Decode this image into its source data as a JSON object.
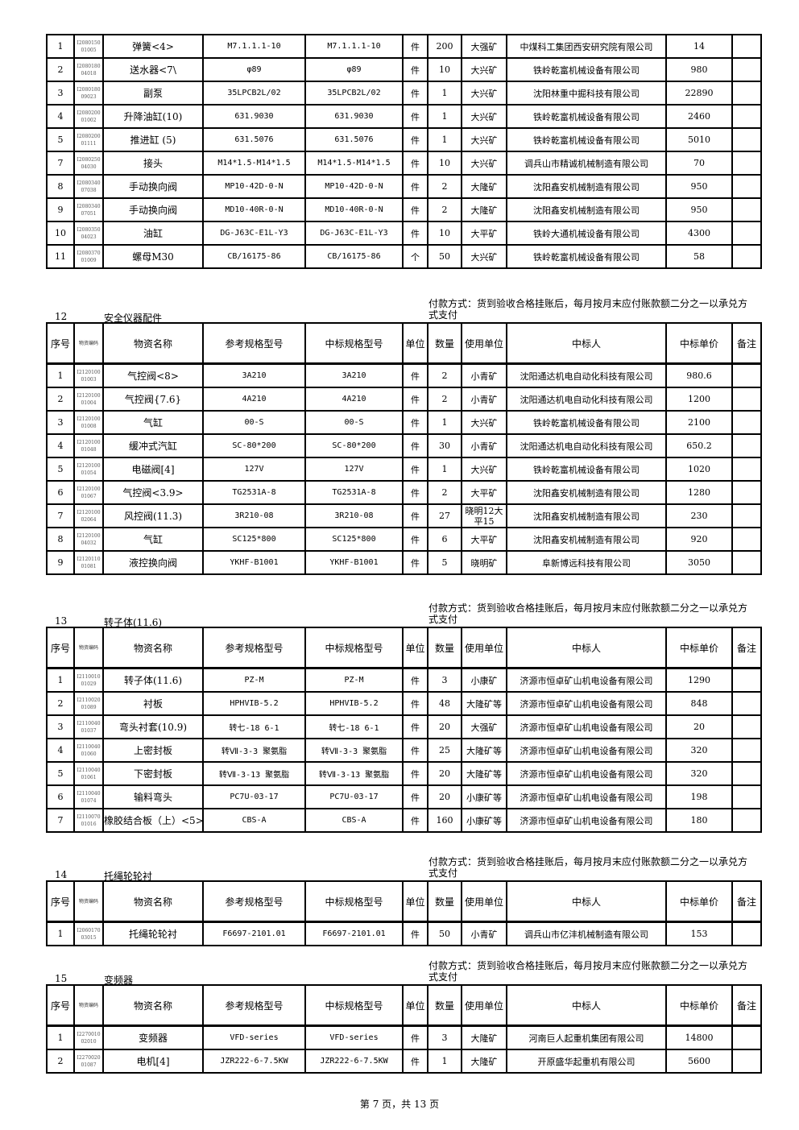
{
  "headers": [
    "序号",
    "物资编码",
    "物资名称",
    "参考规格型号",
    "中标规格型号",
    "单位",
    "数量",
    "使用单位",
    "中标人",
    "中标单价",
    "备注"
  ],
  "payment_note": "付款方式：货到验收合格挂账后，每月按月末应付账款额二分之一以承兑方式支付",
  "sections": [
    {
      "number": "",
      "title": "",
      "rows": [
        [
          "1",
          "I2080150 01005",
          "弹簧<4>",
          "M7.1.1.1-10",
          "M7.1.1.1-10",
          "件",
          "200",
          "大强矿",
          "中煤科工集团西安研究院有限公司",
          "14",
          ""
        ],
        [
          "2",
          "I2080180 04018",
          "送水器<7\\",
          "φ89",
          "φ89",
          "件",
          "10",
          "大兴矿",
          "铁岭乾富机械设备有限公司",
          "980",
          ""
        ],
        [
          "3",
          "I2080180 09023",
          "副泵",
          "35LPCB2L/02",
          "35LPCB2L/02",
          "件",
          "1",
          "大兴矿",
          "沈阳林重中掘科技有限公司",
          "22890",
          ""
        ],
        [
          "4",
          "I2080200 01002",
          "升降油缸(10)",
          "631.9030",
          "631.9030",
          "件",
          "1",
          "大兴矿",
          "铁岭乾富机械设备有限公司",
          "2460",
          ""
        ],
        [
          "5",
          "I2080200 01111",
          "推进缸 (5)",
          "631.5076",
          "631.5076",
          "件",
          "1",
          "大兴矿",
          "铁岭乾富机械设备有限公司",
          "5010",
          ""
        ],
        [
          "7",
          "I2080250 04030",
          "接头",
          "M14*1.5-M14*1.5",
          "M14*1.5-M14*1.5",
          "件",
          "10",
          "大兴矿",
          "调兵山市精诚机械制造有限公司",
          "70",
          ""
        ],
        [
          "8",
          "I2080340 07038",
          "手动换向阀",
          "MP10-42D-0-N",
          "MP10-42D-0-N",
          "件",
          "2",
          "大隆矿",
          "沈阳鑫安机械制造有限公司",
          "950",
          ""
        ],
        [
          "9",
          "I2080340 07051",
          "手动换向阀",
          "MD10-40R-0-N",
          "MD10-40R-0-N",
          "件",
          "2",
          "大隆矿",
          "沈阳鑫安机械制造有限公司",
          "950",
          ""
        ],
        [
          "10",
          "I2080350 04023",
          "油缸",
          "DG-J63C-E1L-Y3",
          "DG-J63C-E1L-Y3",
          "件",
          "10",
          "大平矿",
          "铁岭大通机械设备有限公司",
          "4300",
          ""
        ],
        [
          "11",
          "I2080370 01009",
          "螺母M30",
          "CB/16175-86",
          "CB/16175-86",
          "个",
          "50",
          "大兴矿",
          "铁岭乾富机械设备有限公司",
          "58",
          ""
        ]
      ]
    },
    {
      "number": "12",
      "title": "安全仪器配件",
      "rows": [
        [
          "1",
          "I2120100 01003",
          "气控阀<8>",
          "3A210",
          "3A210",
          "件",
          "2",
          "小青矿",
          "沈阳通达机电自动化科技有限公司",
          "980.6",
          ""
        ],
        [
          "2",
          "I2120100 01004",
          "气控阀{7.6}",
          "4A210",
          "4A210",
          "件",
          "2",
          "小青矿",
          "沈阳通达机电自动化科技有限公司",
          "1200",
          ""
        ],
        [
          "3",
          "I2120100 01008",
          "气缸",
          "00-S",
          "00-S",
          "件",
          "1",
          "大兴矿",
          "铁岭乾富机械设备有限公司",
          "2100",
          ""
        ],
        [
          "4",
          "I2120100 01048",
          "缓冲式汽缸",
          "SC-80*200",
          "SC-80*200",
          "件",
          "30",
          "小青矿",
          "沈阳通达机电自动化科技有限公司",
          "650.2",
          ""
        ],
        [
          "5",
          "I2120100 01054",
          "电磁阀[4]",
          "127V",
          "127V",
          "件",
          "1",
          "大兴矿",
          "铁岭乾富机械设备有限公司",
          "1020",
          ""
        ],
        [
          "6",
          "I2120100 01067",
          "气控阀<3.9>",
          "TG2531A-8",
          "TG2531A-8",
          "件",
          "2",
          "大平矿",
          "沈阳鑫安机械制造有限公司",
          "1280",
          ""
        ],
        [
          "7",
          "I2120100 02064",
          "风控阀(11.3)",
          "3R210-08",
          "3R210-08",
          "件",
          "27",
          "晓明12大平15",
          "沈阳鑫安机械制造有限公司",
          "230",
          ""
        ],
        [
          "8",
          "I2120100 04032",
          "气缸",
          "SC125*800",
          "SC125*800",
          "件",
          "6",
          "大平矿",
          "沈阳鑫安机械制造有限公司",
          "920",
          ""
        ],
        [
          "9",
          "I2120110 01081",
          "液控换向阀",
          "YKHF-B1001",
          "YKHF-B1001",
          "件",
          "5",
          "晓明矿",
          "阜新博远科技有限公司",
          "3050",
          ""
        ]
      ]
    },
    {
      "number": "13",
      "title": "转子体(11.6)",
      "rows": [
        [
          "1",
          "I2110010 01029",
          "转子体(11.6)",
          "PZ-M",
          "PZ-M",
          "件",
          "3",
          "小康矿",
          "济源市恒卓矿山机电设备有限公司",
          "1290",
          ""
        ],
        [
          "2",
          "I2110020 01089",
          "衬板",
          "HPHVIB-5.2",
          "HPHVIB-5.2",
          "件",
          "48",
          "大隆矿等",
          "济源市恒卓矿山机电设备有限公司",
          "848",
          ""
        ],
        [
          "3",
          "I2110040 01037",
          "弯头衬套(10.9)",
          "转七-18    6-1",
          "转七-18    6-1",
          "件",
          "20",
          "大强矿",
          "济源市恒卓矿山机电设备有限公司",
          "20",
          ""
        ],
        [
          "4",
          "I2110040 01060",
          "上密封板",
          "转Ⅶ-3-3 聚氨脂",
          "转Ⅶ-3-3 聚氨脂",
          "件",
          "25",
          "大隆矿等",
          "济源市恒卓矿山机电设备有限公司",
          "320",
          ""
        ],
        [
          "5",
          "I2110040 01061",
          "下密封板",
          "转Ⅶ-3-13 聚氨脂",
          "转Ⅶ-3-13 聚氨脂",
          "件",
          "20",
          "大隆矿等",
          "济源市恒卓矿山机电设备有限公司",
          "320",
          ""
        ],
        [
          "6",
          "I2110040 01074",
          "输料弯头",
          "PC7U-03-17",
          "PC7U-03-17",
          "件",
          "20",
          "小康矿等",
          "济源市恒卓矿山机电设备有限公司",
          "198",
          ""
        ],
        [
          "7",
          "I2110070 01016",
          "橡胶结合板（上）<5>",
          "CBS-A",
          "CBS-A",
          "件",
          "160",
          "小康矿等",
          "济源市恒卓矿山机电设备有限公司",
          "180",
          ""
        ]
      ]
    },
    {
      "number": "14",
      "title": "托绳轮轮衬",
      "rows": [
        [
          "1",
          "I2060170 03015",
          "托绳轮轮衬",
          "F6697-2101.01",
          "F6697-2101.01",
          "件",
          "50",
          "小青矿",
          "调兵山市亿沣机械制造有限公司",
          "153",
          ""
        ]
      ]
    },
    {
      "number": "15",
      "title": "变频器",
      "rows": [
        [
          "1",
          "I2270010 02010",
          "变频器",
          "VFD-series",
          "VFD-series",
          "件",
          "3",
          "大隆矿",
          "河南巨人起重机集团有限公司",
          "14800",
          ""
        ],
        [
          "2",
          "I2270020 01087",
          "电机[4]",
          "JZR222-6-7.5KW",
          "JZR222-6-7.5KW",
          "件",
          "1",
          "大隆矿",
          "开原盛华起重机有限公司",
          "5600",
          ""
        ]
      ]
    }
  ],
  "footer": "第 7 页，共 13 页"
}
